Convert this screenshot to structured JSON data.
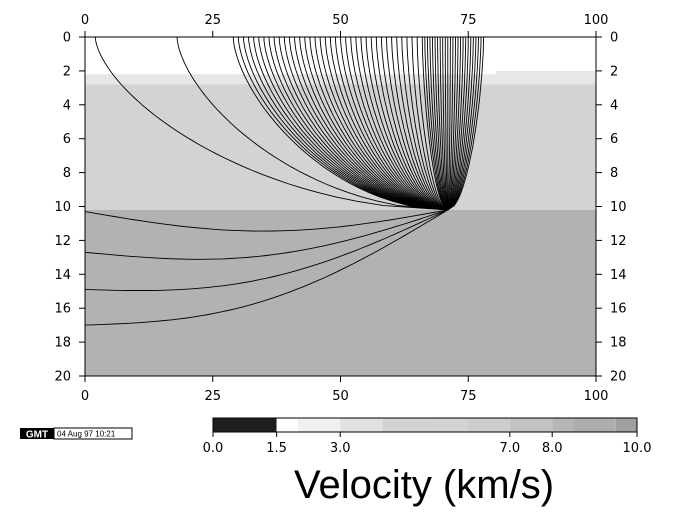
{
  "chart_data": {
    "type": "ray-trace",
    "xlim": [
      0,
      100
    ],
    "ylim": [
      0,
      20
    ],
    "y_inverted": true,
    "x_ticks": [
      "0",
      "25",
      "50",
      "75",
      "100"
    ],
    "y_ticks": [
      "0",
      "2",
      "4",
      "6",
      "8",
      "10",
      "12",
      "14",
      "16",
      "18",
      "20"
    ],
    "source": {
      "x": 71,
      "z": 10.2
    },
    "layers": [
      {
        "ztop": 0,
        "zbot": 2.2,
        "xmax": 80.5,
        "color": "#ffffff"
      },
      {
        "ztop": 2.2,
        "zbot": 2.8,
        "xmax": 100,
        "color": "#e6e6e6"
      },
      {
        "ztop": 2.8,
        "zbot": 10.2,
        "xmax": 100,
        "color": "#d3d3d3"
      },
      {
        "ztop": 10.2,
        "zbot": 20,
        "xmax": 100,
        "color": "#b2b2b2"
      }
    ],
    "upper_ray_surface_x": [
      2,
      18,
      29,
      30,
      31,
      32,
      33,
      34,
      35,
      36,
      37,
      38,
      39,
      40,
      41,
      42,
      43,
      44,
      45,
      46,
      47,
      48,
      49,
      50,
      51,
      52,
      53,
      54,
      55,
      56,
      57,
      58,
      59,
      60,
      61,
      62,
      63,
      64,
      65,
      66,
      66.5,
      67,
      67.5,
      68,
      68.5,
      69,
      69.5,
      70,
      70.5,
      71,
      71.5,
      72,
      72.5,
      73,
      73.5,
      74,
      74.5,
      75,
      75.5,
      76,
      76.5,
      77,
      77.5,
      78
    ],
    "deep_ray_ends": [
      {
        "x": 0,
        "z": 10.3
      },
      {
        "x": 0,
        "z": 12.7
      },
      {
        "x": 0,
        "z": 14.9
      },
      {
        "x": 0,
        "z": 17.0
      }
    ]
  },
  "colorbar": {
    "segments": [
      {
        "from": 0.0,
        "to": 1.5,
        "color": "#1e1e1e"
      },
      {
        "from": 1.5,
        "to": 2.0,
        "color": "#ffffff"
      },
      {
        "from": 2.0,
        "to": 3.0,
        "color": "#f0f0f0"
      },
      {
        "from": 3.0,
        "to": 4.0,
        "color": "#e1e1e1"
      },
      {
        "from": 4.0,
        "to": 5.0,
        "color": "#d2d2d2"
      },
      {
        "from": 5.0,
        "to": 6.0,
        "color": "#d3d3d3"
      },
      {
        "from": 6.0,
        "to": 7.0,
        "color": "#cdcdcd"
      },
      {
        "from": 7.0,
        "to": 8.0,
        "color": "#c3c3c3"
      },
      {
        "from": 8.0,
        "to": 8.5,
        "color": "#b6b6b6"
      },
      {
        "from": 8.5,
        "to": 9.5,
        "color": "#adadad"
      },
      {
        "from": 9.5,
        "to": 10.0,
        "color": "#a0a0a0"
      }
    ],
    "tick_values": [
      0.0,
      1.5,
      3.0,
      7.0,
      8.0,
      10.0
    ],
    "tick_labels": [
      "0.0",
      "1.5",
      "3.0",
      "7.0",
      "8.0",
      "10.0"
    ],
    "label": "Velocity (km/s)"
  },
  "stamp": {
    "logo": "GMT",
    "date": "04 Aug 97 10:21"
  }
}
